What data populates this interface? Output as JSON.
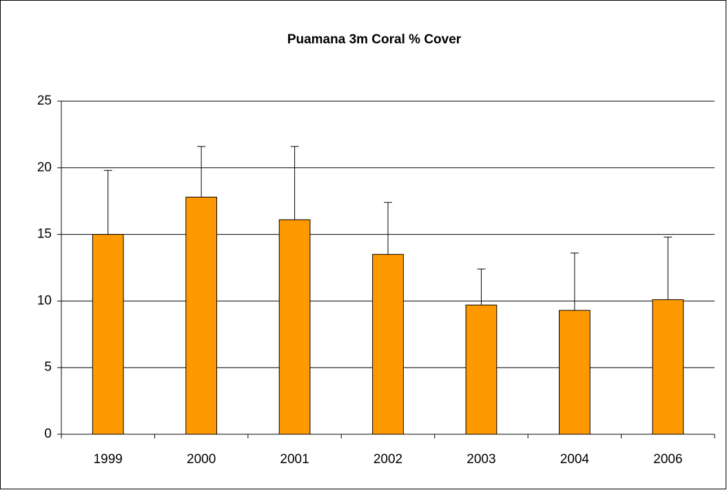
{
  "chart_data": {
    "type": "bar",
    "title": "Puamana 3m Coral % Cover",
    "categories": [
      "1999",
      "2000",
      "2001",
      "2002",
      "2003",
      "2004",
      "2006"
    ],
    "values": [
      15.0,
      17.8,
      16.1,
      13.5,
      9.7,
      9.3,
      10.1
    ],
    "errors": [
      4.8,
      3.8,
      5.5,
      3.9,
      2.7,
      4.3,
      4.7
    ],
    "color": "#ff9900",
    "ylim": [
      0,
      25
    ],
    "yticks": [
      0,
      5,
      10,
      15,
      20,
      25
    ],
    "grid": true
  }
}
